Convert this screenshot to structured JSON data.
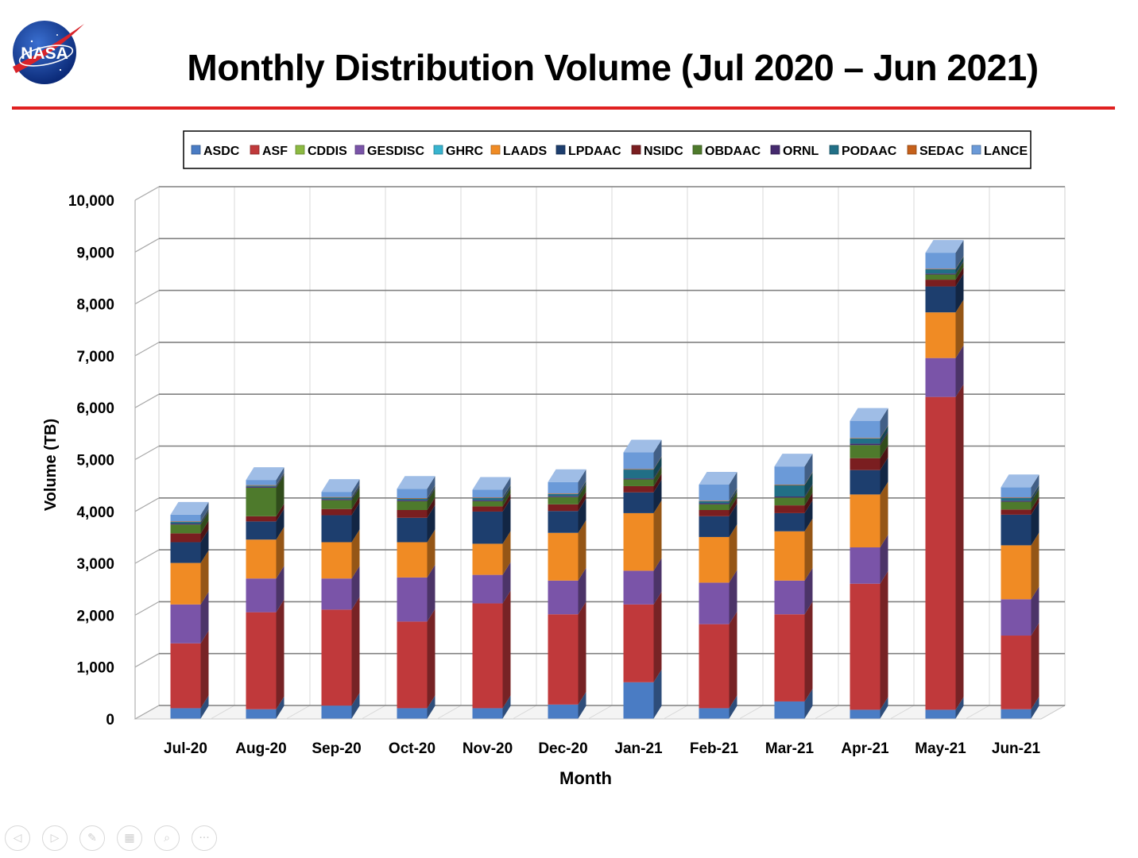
{
  "slide": {
    "title": "Monthly Distribution Volume (Jul 2020 – Jun 2021)",
    "logo_text": "NASA"
  },
  "colors": {
    "rule": "#e02020"
  },
  "toolbar": {
    "buttons": [
      {
        "name": "previous-slide-button",
        "icon": "arrow-left-icon",
        "glyph": "◁"
      },
      {
        "name": "next-slide-button",
        "icon": "arrow-right-icon",
        "glyph": "▷"
      },
      {
        "name": "pen-button",
        "icon": "pen-icon",
        "glyph": "✎"
      },
      {
        "name": "slide-sorter-button",
        "icon": "grid-icon",
        "glyph": "▦"
      },
      {
        "name": "zoom-button",
        "icon": "magnifier-icon",
        "glyph": "⌕"
      },
      {
        "name": "more-options-button",
        "icon": "ellipsis-icon",
        "glyph": "···"
      }
    ]
  },
  "chart_data": {
    "type": "bar",
    "stacked": true,
    "three_d": true,
    "xlabel": "Month",
    "ylabel": "Volume (TB)",
    "ylim": [
      0,
      10000
    ],
    "yticks": [
      0,
      1000,
      2000,
      3000,
      4000,
      5000,
      6000,
      7000,
      8000,
      9000,
      10000
    ],
    "ytick_labels": [
      "0",
      "1,000",
      "2,000",
      "3,000",
      "4,000",
      "5,000",
      "6,000",
      "7,000",
      "8,000",
      "9,000",
      "10,000"
    ],
    "grid": true,
    "legend_position": "top",
    "categories": [
      "Jul-20",
      "Aug-20",
      "Sep-20",
      "Oct-20",
      "Nov-20",
      "Dec-20",
      "Jan-21",
      "Feb-21",
      "Mar-21",
      "Apr-21",
      "May-21",
      "Jun-21"
    ],
    "series": [
      {
        "name": "ASDC",
        "color": "#4a7cc4",
        "values": [
          200,
          180,
          250,
          200,
          200,
          270,
          700,
          200,
          330,
          170,
          170,
          180
        ]
      },
      {
        "name": "ASF",
        "color": "#c0393b",
        "values": [
          1250,
          1870,
          1850,
          1670,
          2020,
          1740,
          1500,
          1620,
          1680,
          2430,
          6030,
          1420
        ]
      },
      {
        "name": "CDDIS",
        "color": "#8cba42",
        "values": [
          0,
          0,
          0,
          0,
          0,
          0,
          0,
          0,
          0,
          0,
          0,
          0
        ]
      },
      {
        "name": "GESDISC",
        "color": "#7a54a8",
        "values": [
          750,
          650,
          600,
          850,
          550,
          650,
          650,
          800,
          650,
          700,
          750,
          700
        ]
      },
      {
        "name": "GHRC",
        "color": "#38b4cf",
        "values": [
          0,
          0,
          0,
          0,
          0,
          0,
          0,
          0,
          0,
          0,
          0,
          0
        ]
      },
      {
        "name": "LAADS",
        "color": "#f08b24",
        "values": [
          800,
          750,
          700,
          680,
          600,
          920,
          1110,
          880,
          950,
          1020,
          880,
          1040
        ]
      },
      {
        "name": "LPDAAC",
        "color": "#1d3e6e",
        "values": [
          400,
          350,
          520,
          470,
          620,
          420,
          400,
          400,
          350,
          470,
          500,
          590
        ]
      },
      {
        "name": "NSIDC",
        "color": "#7a1e20",
        "values": [
          170,
          100,
          120,
          150,
          100,
          130,
          120,
          120,
          150,
          230,
          130,
          100
        ]
      },
      {
        "name": "OBDAAC",
        "color": "#4e7a2c",
        "values": [
          170,
          550,
          170,
          170,
          100,
          140,
          130,
          110,
          150,
          250,
          100,
          150
        ]
      },
      {
        "name": "ORNL",
        "color": "#452a6e",
        "values": [
          20,
          20,
          20,
          20,
          20,
          20,
          20,
          20,
          20,
          30,
          20,
          20
        ]
      },
      {
        "name": "PODAAC",
        "color": "#216f86",
        "values": [
          30,
          20,
          30,
          30,
          40,
          40,
          170,
          40,
          220,
          100,
          80,
          50
        ]
      },
      {
        "name": "SEDAC",
        "color": "#c5601a",
        "values": [
          10,
          10,
          10,
          10,
          10,
          10,
          10,
          10,
          10,
          10,
          10,
          10
        ]
      },
      {
        "name": "LANCE",
        "color": "#6b9ad8",
        "values": [
          130,
          100,
          100,
          180,
          150,
          220,
          320,
          310,
          350,
          330,
          310,
          200
        ]
      }
    ]
  }
}
